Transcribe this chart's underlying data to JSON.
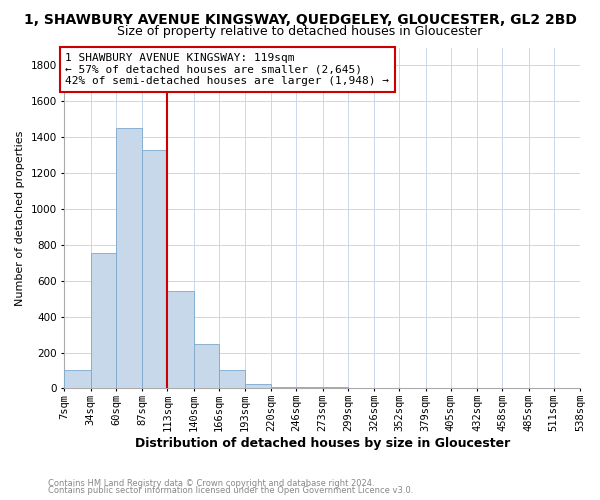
{
  "title1": "1, SHAWBURY AVENUE KINGSWAY, QUEDGELEY, GLOUCESTER, GL2 2BD",
  "title2": "Size of property relative to detached houses in Gloucester",
  "xlabel": "Distribution of detached houses by size in Gloucester",
  "ylabel": "Number of detached properties",
  "footnote1": "Contains HM Land Registry data © Crown copyright and database right 2024.",
  "footnote2": "Contains public sector information licensed under the Open Government Licence v3.0.",
  "bin_edges": [
    7,
    34,
    60,
    87,
    113,
    140,
    166,
    193,
    220,
    246,
    273,
    299,
    326,
    352,
    379,
    405,
    432,
    458,
    485,
    511,
    538
  ],
  "bin_labels": [
    "7sqm",
    "34sqm",
    "60sqm",
    "87sqm",
    "113sqm",
    "140sqm",
    "166sqm",
    "193sqm",
    "220sqm",
    "246sqm",
    "273sqm",
    "299sqm",
    "326sqm",
    "352sqm",
    "379sqm",
    "405sqm",
    "432sqm",
    "458sqm",
    "485sqm",
    "511sqm",
    "538sqm"
  ],
  "counts": [
    105,
    755,
    1450,
    1330,
    545,
    250,
    105,
    25,
    10,
    8,
    5,
    3,
    3,
    0,
    0,
    3,
    0,
    0,
    0,
    0
  ],
  "bar_color": "#c8d8eb",
  "bar_edgecolor": "#7aa8cc",
  "vline_x": 113,
  "vline_color": "#cc0000",
  "annotation_text": "1 SHAWBURY AVENUE KINGSWAY: 119sqm\n← 57% of detached houses are smaller (2,645)\n42% of semi-detached houses are larger (1,948) →",
  "annotation_box_color": "#cc0000",
  "ylim": [
    0,
    1900
  ],
  "yticks": [
    0,
    200,
    400,
    600,
    800,
    1000,
    1200,
    1400,
    1600,
    1800
  ],
  "background_color": "#ffffff",
  "grid_color": "#c8d8eb",
  "title1_fontsize": 10,
  "title2_fontsize": 9,
  "xlabel_fontsize": 9,
  "ylabel_fontsize": 8,
  "annotation_fontsize": 8,
  "tick_fontsize": 7.5
}
